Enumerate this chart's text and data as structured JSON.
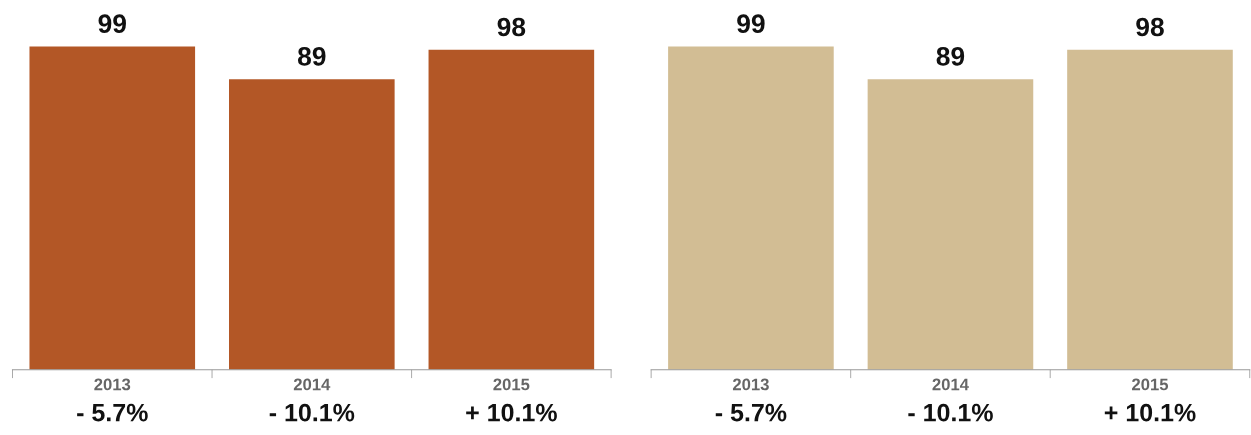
{
  "chart_data": [
    {
      "type": "bar",
      "categories": [
        "2013",
        "2014",
        "2015"
      ],
      "values": [
        99,
        89,
        98
      ],
      "color": "#b35726",
      "data_labels": true,
      "grid": false,
      "annotations": [
        "- 5.7%",
        "- 10.1%",
        "+ 10.1%"
      ]
    },
    {
      "type": "bar",
      "categories": [
        "2013",
        "2014",
        "2015"
      ],
      "values": [
        99,
        89,
        98
      ],
      "color": "#d2bd94",
      "data_labels": true,
      "grid": false,
      "annotations": [
        "- 5.7%",
        "- 10.1%",
        "+ 10.1%"
      ]
    }
  ]
}
